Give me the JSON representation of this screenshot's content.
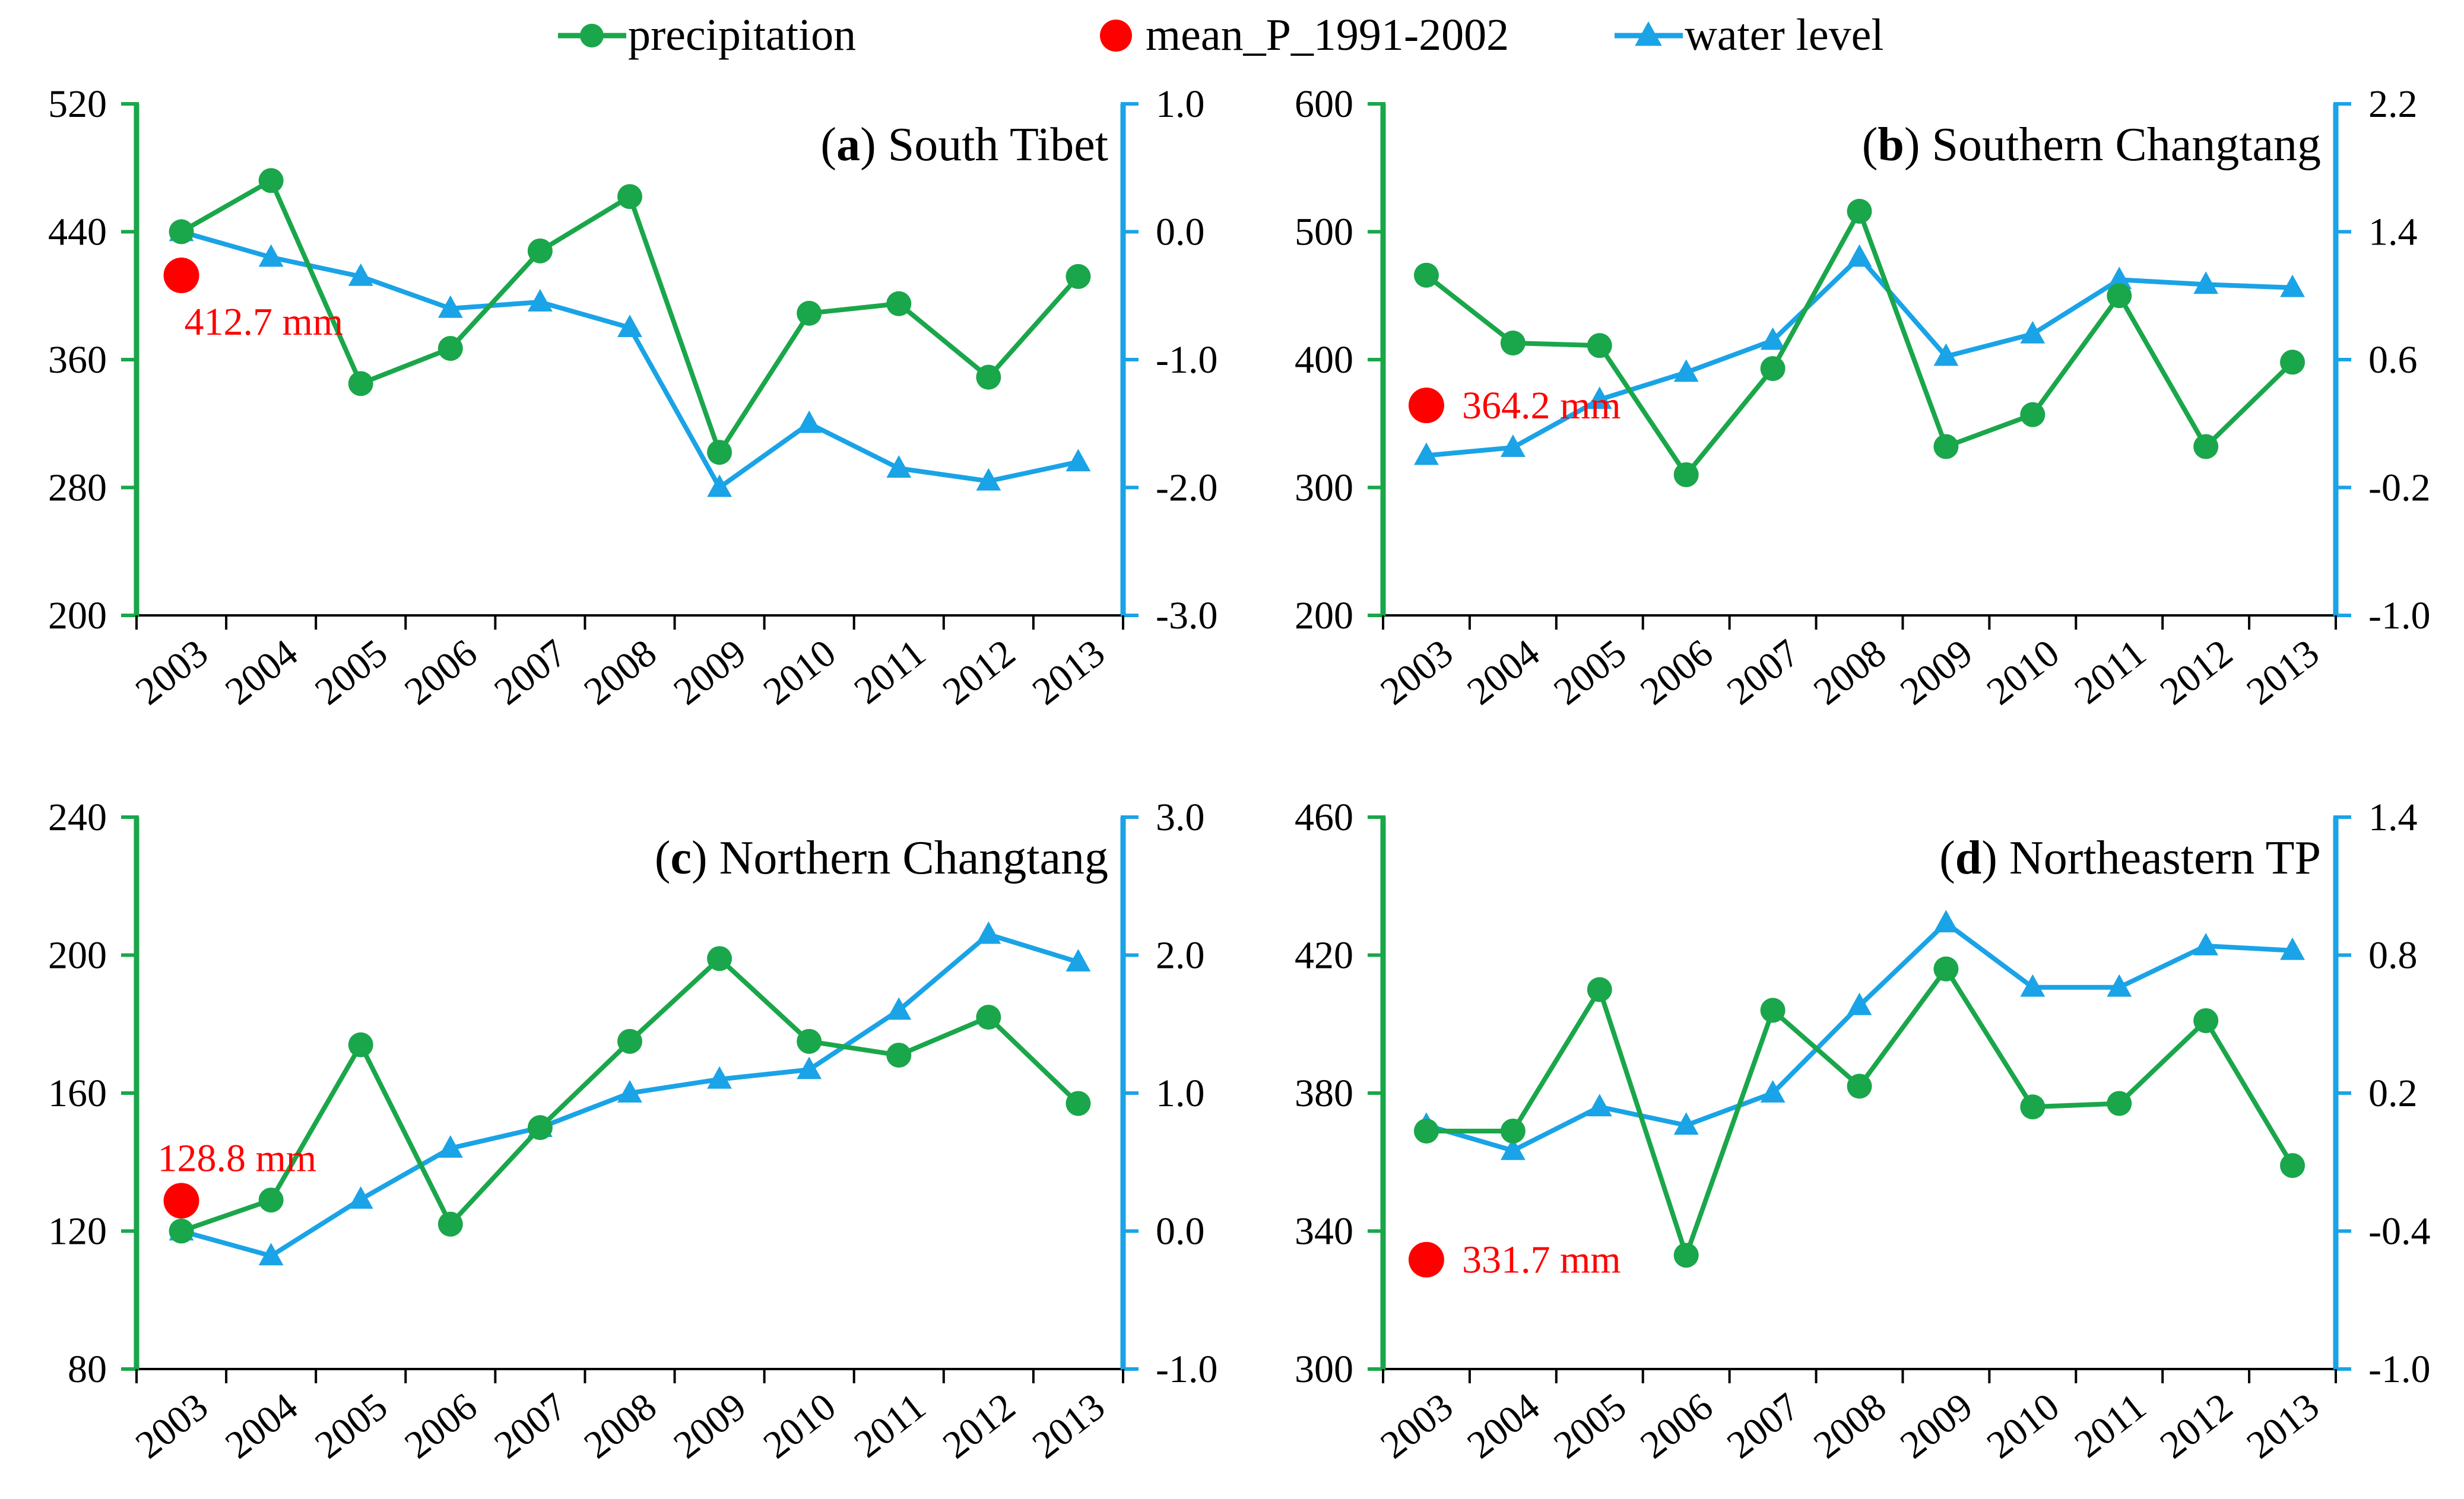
{
  "legend": [
    {
      "name": "precipitation",
      "marker": "circle",
      "color": "#1aa64a",
      "label": "precipitation"
    },
    {
      "name": "mean",
      "marker": "dot",
      "color": "#ff0000",
      "label": "mean_P_1991-2002"
    },
    {
      "name": "water-level",
      "marker": "triangle",
      "color": "#1aa3e6",
      "label": "water level"
    }
  ],
  "colors": {
    "precipitation": "#1aa64a",
    "water_level": "#1aa3e6",
    "mean": "#ff0000",
    "axis": "#000000"
  },
  "chart_data": [
    {
      "type": "line",
      "panel_letter": "a",
      "title": "South Tibet",
      "categories": [
        "2003",
        "2004",
        "2005",
        "2006",
        "2007",
        "2008",
        "2009",
        "2010",
        "2011",
        "2012",
        "2013"
      ],
      "series": [
        {
          "name": "precipitation",
          "axis": "left",
          "values": [
            440,
            472,
            345,
            367,
            428,
            462,
            302,
            389,
            395,
            349,
            412
          ]
        },
        {
          "name": "water level",
          "axis": "right",
          "values": [
            0.0,
            -0.2,
            -0.35,
            -0.6,
            -0.55,
            -0.75,
            -2.0,
            -1.5,
            -1.85,
            -1.95,
            -1.8
          ]
        }
      ],
      "mean": {
        "value": 412.7,
        "label": "412.7 mm"
      },
      "ylim_left": [
        200,
        520
      ],
      "yticks_left": [
        "200",
        "280",
        "360",
        "440",
        "520"
      ],
      "ylim_right": [
        -3.0,
        1.0
      ],
      "yticks_right": [
        "-3.0",
        "-2.0",
        "-1.0",
        "0.0",
        "1.0"
      ]
    },
    {
      "type": "line",
      "panel_letter": "b",
      "title": "Southern Changtang",
      "categories": [
        "2003",
        "2004",
        "2005",
        "2006",
        "2007",
        "2008",
        "2009",
        "2010",
        "2011",
        "2012",
        "2013"
      ],
      "series": [
        {
          "name": "precipitation",
          "axis": "left",
          "values": [
            466,
            413,
            411,
            310,
            393,
            516,
            332,
            357,
            450,
            332,
            398
          ]
        },
        {
          "name": "water level",
          "axis": "right",
          "values": [
            0.0,
            0.05,
            0.35,
            0.52,
            0.72,
            1.24,
            0.62,
            0.76,
            1.1,
            1.07,
            1.05
          ]
        }
      ],
      "mean": {
        "value": 364.2,
        "label": "364.2 mm"
      },
      "ylim_left": [
        200,
        600
      ],
      "yticks_left": [
        "200",
        "300",
        "400",
        "500",
        "600"
      ],
      "ylim_right": [
        -1.0,
        2.2
      ],
      "yticks_right": [
        "-1.0",
        "-0.2",
        "0.6",
        "1.4",
        "2.2"
      ]
    },
    {
      "type": "line",
      "panel_letter": "c",
      "title": "Northern Changtang",
      "categories": [
        "2003",
        "2004",
        "2005",
        "2006",
        "2007",
        "2008",
        "2009",
        "2010",
        "2011",
        "2012",
        "2013"
      ],
      "series": [
        {
          "name": "precipitation",
          "axis": "left",
          "values": [
            120,
            129,
            174,
            122,
            150,
            175,
            199,
            175,
            171,
            182,
            157
          ]
        },
        {
          "name": "water level",
          "axis": "right",
          "values": [
            0.0,
            -0.18,
            0.23,
            0.6,
            0.75,
            1.0,
            1.1,
            1.17,
            1.6,
            2.15,
            1.95
          ]
        }
      ],
      "mean": {
        "value": 128.8,
        "label": "128.8 mm"
      },
      "ylim_left": [
        80,
        240
      ],
      "yticks_left": [
        "80",
        "120",
        "160",
        "200",
        "240"
      ],
      "ylim_right": [
        -1.0,
        3.0
      ],
      "yticks_right": [
        "-1.0",
        "0.0",
        "1.0",
        "2.0",
        "3.0"
      ]
    },
    {
      "type": "line",
      "panel_letter": "d",
      "title": "Northeastern TP",
      "categories": [
        "2003",
        "2004",
        "2005",
        "2006",
        "2007",
        "2008",
        "2009",
        "2010",
        "2011",
        "2012",
        "2013"
      ],
      "series": [
        {
          "name": "precipitation",
          "axis": "left",
          "values": [
            369,
            369,
            410,
            333,
            404,
            382,
            416,
            376,
            377,
            401,
            359
          ]
        },
        {
          "name": "water level",
          "axis": "right",
          "values": [
            0.06,
            -0.05,
            0.14,
            0.06,
            0.2,
            0.58,
            0.94,
            0.66,
            0.66,
            0.84,
            0.82
          ]
        }
      ],
      "mean": {
        "value": 331.7,
        "label": "331.7 mm"
      },
      "ylim_left": [
        300,
        460
      ],
      "yticks_left": [
        "300",
        "340",
        "380",
        "420",
        "460"
      ],
      "ylim_right": [
        -1.0,
        1.4
      ],
      "yticks_right": [
        "-1.0",
        "-0.4",
        "0.2",
        "0.8",
        "1.4"
      ]
    }
  ]
}
